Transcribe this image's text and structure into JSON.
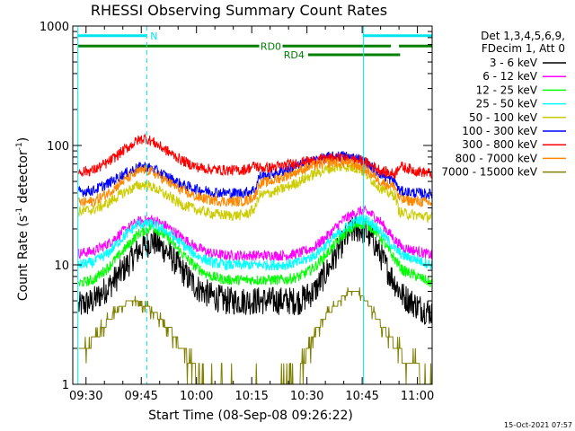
{
  "chart_data": {
    "type": "line",
    "title": "RHESSI Observing Summary Count Rates",
    "xlabel": "Start Time (08-Sep-08 09:26:22)",
    "ylabel_main": "Count Rate (s",
    "ylabel_sup1": "-1",
    "ylabel_mid": " detector",
    "ylabel_sup2": "-1",
    "ylabel_end": ")",
    "y_scale": "log",
    "ylim": [
      1,
      1000
    ],
    "xlim_minutes": [
      86.4,
      184.0
    ],
    "x_ticks": [
      {
        "label": "09:30",
        "minutes": 90
      },
      {
        "label": "09:45",
        "minutes": 105
      },
      {
        "label": "10:00",
        "minutes": 120
      },
      {
        "label": "10:15",
        "minutes": 135
      },
      {
        "label": "10:30",
        "minutes": 150
      },
      {
        "label": "10:45",
        "minutes": 165
      },
      {
        "label": "11:00",
        "minutes": 180
      }
    ],
    "y_ticks": [
      {
        "label": "1",
        "value": 1
      },
      {
        "label": "10",
        "value": 10
      },
      {
        "label": "100",
        "value": 100
      },
      {
        "label": "1000",
        "value": 1000
      }
    ],
    "legend_header": [
      "Det 1,3,4,5,6,9,",
      "FDecim 1, Att 0"
    ],
    "legend_placement": "right",
    "series": [
      {
        "name": "3 - 6 keV",
        "color": "#000000",
        "x": [
          88,
          92,
          96,
          100,
          104,
          108,
          112,
          116,
          120,
          124,
          128,
          132,
          134,
          136,
          138,
          140,
          142,
          144,
          146,
          148,
          150,
          152,
          154,
          156,
          158,
          160,
          162,
          164,
          166,
          168,
          170,
          172,
          174,
          176,
          178,
          180,
          182,
          184
        ],
        "y": [
          4.5,
          5.0,
          6.5,
          9.0,
          13.0,
          16.0,
          13.0,
          9.0,
          6.5,
          5.5,
          5.0,
          5.0,
          5.0,
          5.0,
          5.0,
          5.0,
          5.0,
          5.0,
          5.0,
          5.0,
          5.5,
          6.0,
          7.5,
          9.5,
          12.5,
          16.0,
          19.0,
          20.0,
          19.0,
          16.0,
          12.0,
          9.0,
          7.0,
          5.5,
          5.0,
          4.5,
          4.2,
          4.0
        ]
      },
      {
        "name": "6 - 12 keV",
        "color": "#ff00ff",
        "x": [
          88,
          92,
          96,
          100,
          104,
          108,
          112,
          116,
          120,
          124,
          128,
          132,
          136,
          140,
          144,
          148,
          152,
          156,
          160,
          164,
          166,
          168,
          170,
          172,
          174,
          176,
          180,
          184
        ],
        "y": [
          12.5,
          13.0,
          15.0,
          19.0,
          23.0,
          24.0,
          21.0,
          17.0,
          14.0,
          12.5,
          12.0,
          12.0,
          12.0,
          12.0,
          12.0,
          12.5,
          14.0,
          18.0,
          24.0,
          28.0,
          28.0,
          26.0,
          23.0,
          19.0,
          16.0,
          14.0,
          13.0,
          12.0
        ]
      },
      {
        "name": "12 - 25 keV",
        "color": "#00ff00",
        "x": [
          88,
          92,
          96,
          100,
          104,
          108,
          112,
          116,
          120,
          124,
          128,
          132,
          136,
          140,
          144,
          148,
          152,
          156,
          160,
          164,
          166,
          168,
          170,
          172,
          174,
          176,
          180,
          184
        ],
        "y": [
          7.0,
          7.5,
          9.5,
          13.0,
          18.0,
          21.0,
          17.0,
          12.5,
          9.5,
          8.0,
          7.5,
          7.5,
          7.5,
          7.5,
          7.5,
          8.0,
          9.5,
          13.0,
          18.0,
          22.0,
          22.0,
          20.0,
          17.0,
          13.5,
          11.0,
          9.0,
          8.0,
          7.0
        ]
      },
      {
        "name": "25 - 50 keV",
        "color": "#00ffff",
        "x": [
          88,
          92,
          96,
          100,
          104,
          108,
          112,
          116,
          120,
          124,
          128,
          132,
          136,
          140,
          144,
          148,
          152,
          156,
          160,
          164,
          166,
          168,
          170,
          172,
          174,
          176,
          180,
          184
        ],
        "y": [
          10.0,
          10.5,
          12.5,
          17.0,
          22.0,
          22.0,
          19.0,
          15.0,
          12.0,
          10.5,
          10.0,
          10.0,
          10.0,
          10.0,
          10.0,
          10.5,
          12.0,
          15.5,
          20.0,
          24.0,
          24.0,
          22.0,
          19.0,
          16.0,
          13.5,
          12.0,
          11.0,
          10.0
        ]
      },
      {
        "name": "50 - 100 keV",
        "color": "#cccc00",
        "x": [
          88,
          92,
          96,
          100,
          104,
          106,
          108,
          112,
          116,
          120,
          124,
          128,
          132,
          134,
          136,
          137,
          140,
          144,
          148,
          152,
          156,
          160,
          164,
          166,
          168,
          170,
          172,
          174,
          175,
          176,
          180,
          184
        ],
        "y": [
          28.0,
          29.0,
          33.0,
          40.0,
          46.0,
          47.0,
          45.0,
          38.0,
          32.0,
          29.0,
          27.0,
          26.0,
          26.0,
          27.0,
          30.0,
          38.0,
          40.0,
          44.0,
          50.0,
          58.0,
          64.0,
          67.0,
          64.0,
          58.0,
          50.0,
          44.0,
          40.0,
          38.0,
          28.0,
          27.0,
          26.0,
          25.0
        ]
      },
      {
        "name": "100 - 300 keV",
        "color": "#0000ff",
        "x": [
          88,
          92,
          96,
          100,
          104,
          106,
          108,
          112,
          116,
          120,
          124,
          128,
          132,
          134,
          136,
          137,
          140,
          144,
          148,
          152,
          156,
          160,
          164,
          166,
          168,
          170,
          172,
          174,
          175,
          176,
          180,
          184
        ],
        "y": [
          41.0,
          42.0,
          48.0,
          57.0,
          65.0,
          67.0,
          64.0,
          55.0,
          47.0,
          43.0,
          41.0,
          40.0,
          40.0,
          41.0,
          43.0,
          55.0,
          57.0,
          62.0,
          68.0,
          75.0,
          80.0,
          82.0,
          78.0,
          72.0,
          64.0,
          58.0,
          53.0,
          50.0,
          42.0,
          41.0,
          40.0,
          39.0
        ]
      },
      {
        "name": "300 - 800 keV",
        "color": "#ff0000",
        "x": [
          88,
          92,
          96,
          100,
          104,
          106,
          108,
          112,
          116,
          120,
          124,
          128,
          132,
          134,
          136,
          137,
          140,
          144,
          148,
          152,
          156,
          160,
          164,
          166,
          168,
          170,
          172,
          174,
          175,
          176,
          180,
          184
        ],
        "y": [
          60.0,
          62.0,
          72.0,
          90.0,
          110.0,
          115.0,
          108.0,
          90.0,
          75.0,
          66.0,
          63.0,
          62.0,
          62.0,
          64.0,
          68.0,
          65.0,
          65.0,
          68.0,
          72.0,
          75.0,
          78.0,
          78.0,
          75.0,
          72.0,
          67.0,
          62.0,
          59.0,
          58.0,
          68.0,
          66.0,
          61.0,
          58.0
        ]
      },
      {
        "name": "800 - 7000 keV",
        "color": "#ff8800",
        "x": [
          88,
          92,
          96,
          100,
          104,
          106,
          108,
          112,
          116,
          120,
          124,
          128,
          132,
          134,
          136,
          137,
          140,
          144,
          148,
          152,
          156,
          160,
          164,
          166,
          168,
          170,
          172,
          174,
          175,
          176,
          180,
          184
        ],
        "y": [
          33.0,
          34.0,
          40.0,
          50.0,
          60.0,
          63.0,
          60.0,
          50.0,
          42.0,
          37.0,
          35.0,
          34.0,
          34.0,
          35.0,
          38.0,
          48.0,
          50.0,
          55.0,
          62.0,
          68.0,
          72.0,
          72.0,
          68.0,
          62.0,
          56.0,
          50.0,
          47.0,
          45.0,
          36.0,
          35.0,
          34.0,
          33.0
        ]
      },
      {
        "name": "7000 - 15000 keV",
        "color": "#808000",
        "x": [
          88,
          92,
          94,
          96,
          98,
          100,
          102,
          104,
          106,
          108,
          110,
          112,
          114,
          116,
          118,
          120,
          124,
          128,
          132,
          136,
          140,
          144,
          148,
          150,
          152,
          154,
          156,
          158,
          160,
          162,
          164,
          166,
          168,
          170,
          172,
          174,
          176,
          180,
          184
        ],
        "y": [
          2.0,
          2.3,
          2.8,
          3.4,
          4.0,
          4.6,
          5.0,
          5.0,
          4.6,
          4.1,
          3.6,
          3.1,
          2.6,
          2.0,
          1.6,
          1.2,
          1.0,
          1.0,
          1.0,
          1.0,
          1.0,
          1.0,
          1.2,
          1.8,
          2.6,
          3.4,
          4.0,
          4.6,
          5.5,
          6.2,
          6.0,
          5.0,
          4.0,
          3.2,
          2.6,
          2.1,
          1.7,
          1.3,
          1.0
        ]
      }
    ],
    "vertical_lines": [
      {
        "minutes": 87.8,
        "style": "solid",
        "color": "#00e5ee"
      },
      {
        "minutes": 106.5,
        "style": "dashed",
        "color": "#00e5ee"
      },
      {
        "minutes": 165.3,
        "style": "solid",
        "color": "#00e5ee"
      },
      {
        "minutes": 184.0,
        "style": "dashed",
        "color": "#00e5ee"
      }
    ],
    "status_bars": [
      {
        "label": "N",
        "color": "#00e5ee",
        "y_value": 830,
        "segments": [
          [
            87.8,
            106.5
          ],
          [
            165.3,
            184.0
          ]
        ]
      },
      {
        "label": "RD0",
        "color": "#008000",
        "y_value": 680,
        "segments": [
          [
            87.8,
            172.8
          ],
          [
            175.0,
            184.0
          ]
        ]
      },
      {
        "label": "RD4",
        "color": "#008000",
        "y_value": 575,
        "segments": [
          [
            150.3,
            175.3
          ]
        ]
      }
    ]
  },
  "footer": {
    "timestamp": "15-Oct-2021 07:57"
  }
}
